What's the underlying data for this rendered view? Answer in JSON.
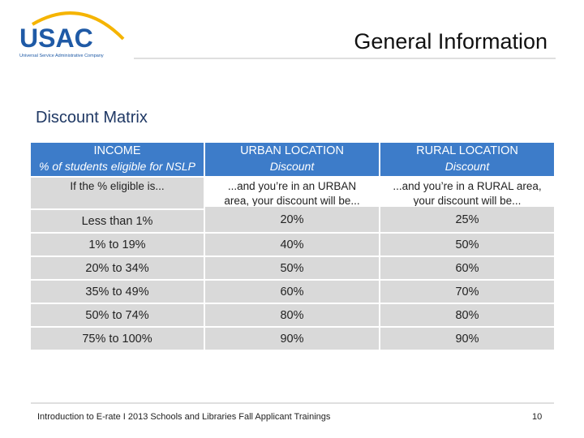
{
  "header": {
    "logo": "USAC",
    "logo_subtitle": "Universal Service Administrative Company",
    "title": "General Information"
  },
  "section_title": "Discount Matrix",
  "table": {
    "columns": [
      {
        "title": "INCOME",
        "subtitle": "% of students eligible for NSLP"
      },
      {
        "title": "URBAN LOCATION",
        "subtitle": "Discount"
      },
      {
        "title": "RURAL LOCATION",
        "subtitle": "Discount"
      }
    ],
    "subheader": [
      "If the % eligible is...",
      "...and you’re in an URBAN area, your discount will be...",
      "...and you’re in a RURAL area, your discount will be..."
    ],
    "rows": [
      [
        "Less than 1%",
        "20%",
        "25%"
      ],
      [
        "1% to 19%",
        "40%",
        "50%"
      ],
      [
        "20% to 34%",
        "50%",
        "60%"
      ],
      [
        "35% to 49%",
        "60%",
        "70%"
      ],
      [
        "50% to 74%",
        "80%",
        "80%"
      ],
      [
        "75% to 100%",
        "90%",
        "90%"
      ]
    ]
  },
  "footer": {
    "text": "Introduction to E-rate I 2013 Schools and Libraries Fall Applicant Trainings",
    "page": "10"
  }
}
